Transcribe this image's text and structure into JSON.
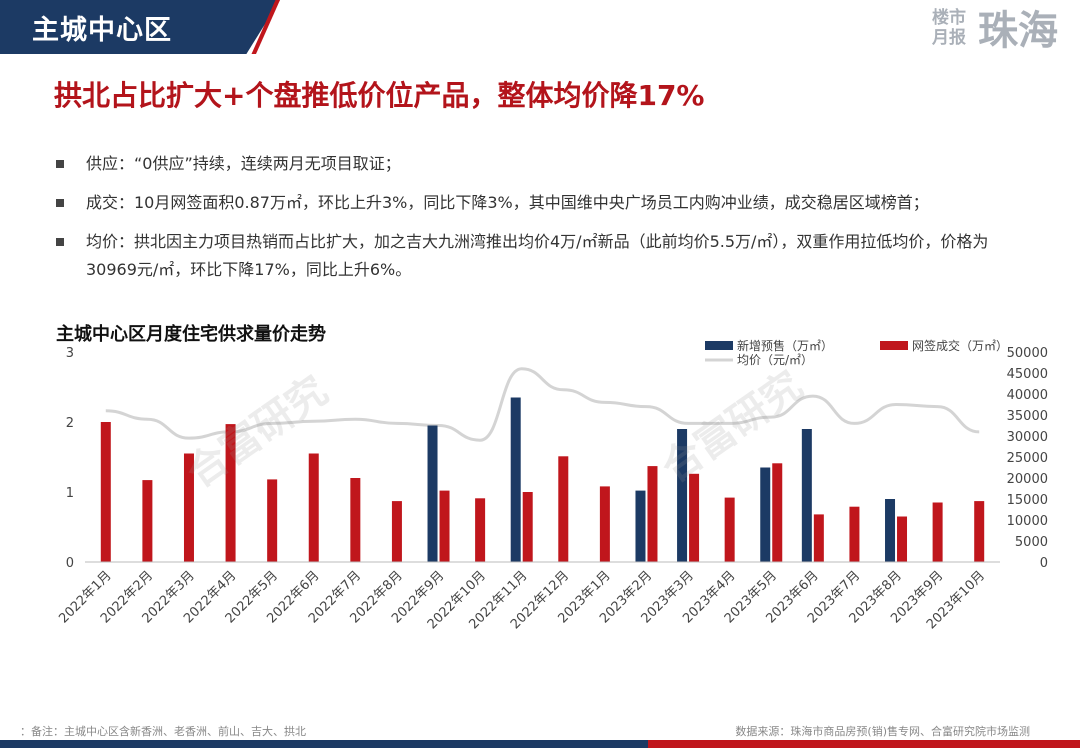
{
  "header": {
    "section_title": "主城中心区",
    "brand_line1": "楼市",
    "brand_line2": "月报",
    "brand_city": "珠海"
  },
  "headline": "拱北占比扩大+个盘推低价位产品，整体均价降17%",
  "bullets": [
    "供应：“0供应”持续，连续两月无项目取证；",
    "成交：10月网签面积0.87万㎡，环比上升3%，同比下降3%，其中国维中央广场员工内购冲业绩，成交稳居区域榜首；",
    "均价：拱北因主力项目热销而占比扩大，加之吉大九洲湾推出均价4万/㎡新品（此前均价5.5万/㎡），双重作用拉低均价，价格为30969元/㎡，环比下降17%，同比上升6%。"
  ],
  "watermark": "合富研究",
  "footer": {
    "note": "：备注：主城中心区含新香洲、老香洲、前山、吉大、拱北",
    "source": "数据来源：珠海市商品房预(销)售专网、合富研究院市场监测"
  },
  "colors": {
    "supply": "#1c3a64",
    "deal": "#c0161c",
    "price": "#d4d4d4",
    "header": "#1c3a64",
    "headline": "#b3141b"
  },
  "chart_data": {
    "type": "bar",
    "title": "主城中心区月度住宅供求量价走势",
    "categories": [
      "2022年1月",
      "2022年2月",
      "2022年3月",
      "2022年4月",
      "2022年5月",
      "2022年6月",
      "2022年7月",
      "2022年8月",
      "2022年9月",
      "2022年10月",
      "2022年11月",
      "2022年12月",
      "2023年1月",
      "2023年2月",
      "2023年3月",
      "2023年4月",
      "2023年5月",
      "2023年6月",
      "2023年7月",
      "2023年8月",
      "2023年9月",
      "2023年10月"
    ],
    "y_left": {
      "ticks": [
        "0",
        "1",
        "2",
        "3"
      ],
      "range": [
        0,
        3
      ]
    },
    "y_right": {
      "ticks": [
        "0",
        "5000",
        "10000",
        "15000",
        "20000",
        "25000",
        "30000",
        "35000",
        "40000",
        "45000",
        "50000"
      ],
      "range": [
        0,
        50000
      ]
    },
    "series": [
      {
        "name": "新增预售（万㎡）",
        "type": "bar",
        "axis": "left",
        "values": [
          0,
          0,
          0,
          0,
          0,
          0,
          0,
          0,
          1.95,
          0,
          2.35,
          0,
          0,
          1.02,
          1.9,
          0,
          1.35,
          1.9,
          0,
          0.9,
          0,
          0
        ]
      },
      {
        "name": "网签成交（万㎡）",
        "type": "bar",
        "axis": "left",
        "values": [
          2.0,
          1.17,
          1.55,
          1.97,
          1.18,
          1.55,
          1.2,
          0.87,
          1.02,
          0.91,
          1.0,
          1.51,
          1.08,
          1.37,
          1.26,
          0.92,
          1.41,
          0.68,
          0.79,
          0.65,
          0.85,
          0.87
        ]
      },
      {
        "name": "均价（元/㎡）",
        "type": "line",
        "axis": "right",
        "values": [
          36000,
          34000,
          29500,
          31000,
          33000,
          33500,
          34000,
          33000,
          32500,
          29000,
          46000,
          41000,
          38000,
          37000,
          33000,
          33000,
          34500,
          39500,
          33000,
          37500,
          37000,
          30969
        ]
      }
    ],
    "legend_position": "top-right"
  }
}
